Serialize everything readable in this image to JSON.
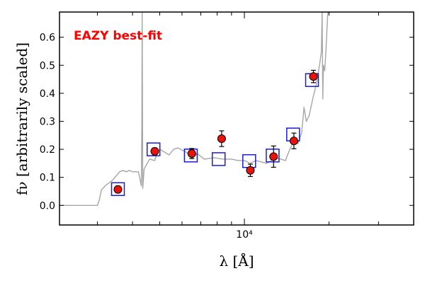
{
  "chart_data": {
    "type": "scatter",
    "x_scale": "log",
    "xlabel": "λ [Å]",
    "ylabel": "fν [arbitrarily scaled]",
    "xlim": [
      2200,
      40000
    ],
    "ylim": [
      -0.07,
      0.69
    ],
    "x_ticks": [
      10000
    ],
    "x_tick_labels": [
      "10⁴"
    ],
    "y_ticks": [
      0.0,
      0.1,
      0.2,
      0.3,
      0.4,
      0.5,
      0.6
    ],
    "y_tick_labels": [
      "0.0",
      "0.1",
      "0.2",
      "0.3",
      "0.4",
      "0.5",
      "0.6"
    ],
    "annotation": {
      "text": "EAZY best-fit",
      "color": "#ff0000"
    },
    "grid": false,
    "colors": {
      "template": "#a6a6a6",
      "model_box": "#1a1adb",
      "observed_fill": "#e8140c",
      "observed_edge": "#000000",
      "errorbar": "#000000"
    },
    "series": [
      {
        "kind": "line",
        "x": [
          2200,
          2800,
          3000,
          3050,
          3100,
          3200,
          3400,
          3600,
          3700,
          3800,
          3900,
          4000,
          4200,
          4300,
          4320,
          4330,
          4340,
          4350,
          4400,
          4600,
          4800,
          4900,
          5000,
          5200,
          5400,
          5600,
          5800,
          6200,
          6563,
          6800,
          7200,
          7800,
          8400,
          9000,
          9500,
          10000,
          10500,
          11000,
          12000,
          13000,
          14000,
          14500,
          15000,
          15500,
          16000,
          16300,
          16600,
          17000,
          17500,
          18000,
          18500,
          18800,
          18900,
          19000,
          19100,
          19300,
          19500,
          19800,
          20200
        ],
        "y": [
          0.0,
          0.0,
          0.0,
          0.02,
          0.055,
          0.07,
          0.09,
          0.12,
          0.125,
          0.12,
          0.125,
          0.12,
          0.12,
          0.07,
          0.3,
          0.69,
          0.4,
          0.06,
          0.13,
          0.165,
          0.16,
          0.19,
          0.2,
          0.19,
          0.18,
          0.2,
          0.205,
          0.19,
          0.17,
          0.185,
          0.165,
          0.17,
          0.165,
          0.165,
          0.16,
          0.16,
          0.15,
          0.16,
          0.15,
          0.17,
          0.16,
          0.2,
          0.23,
          0.22,
          0.26,
          0.35,
          0.3,
          0.32,
          0.38,
          0.43,
          0.5,
          0.55,
          0.69,
          0.38,
          0.5,
          0.48,
          0.55,
          0.69,
          0.69
        ]
      },
      {
        "kind": "model_photometry",
        "x": [
          3550,
          4750,
          6450,
          8100,
          10400,
          12600,
          14900,
          17400
        ],
        "y": [
          0.058,
          0.2,
          0.178,
          0.165,
          0.158,
          0.178,
          0.253,
          0.447
        ]
      },
      {
        "kind": "observed_photometry",
        "x": [
          3550,
          4800,
          6500,
          8300,
          10500,
          12700,
          15000,
          17600
        ],
        "y": [
          0.057,
          0.193,
          0.185,
          0.238,
          0.125,
          0.174,
          0.23,
          0.46
        ],
        "yerr": [
          0.012,
          0.012,
          0.018,
          0.028,
          0.022,
          0.038,
          0.028,
          0.022
        ]
      }
    ]
  }
}
